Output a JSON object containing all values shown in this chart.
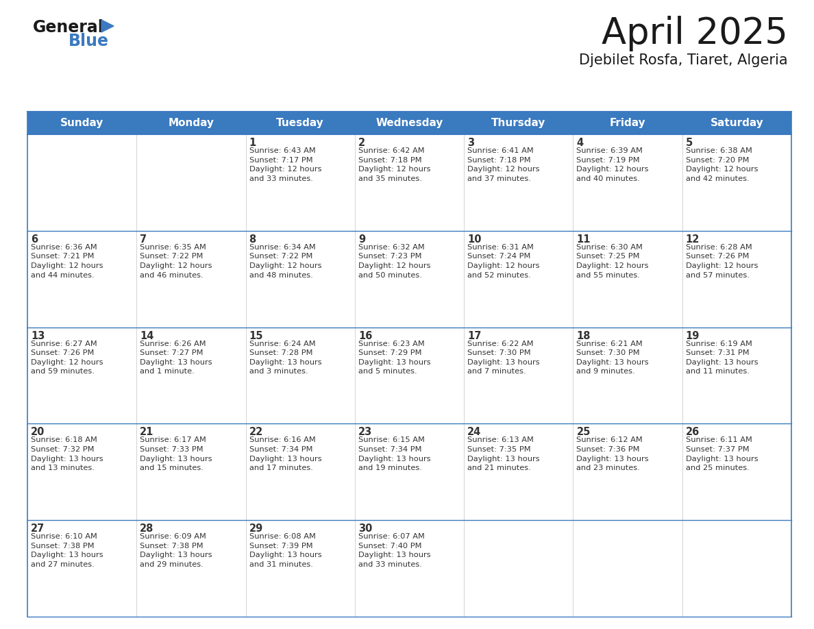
{
  "title": "April 2025",
  "subtitle": "Djebilet Rosfa, Tiaret, Algeria",
  "header_color": "#3a7abf",
  "header_text_color": "#ffffff",
  "border_color": "#3a7abf",
  "text_color": "#333333",
  "days_of_week": [
    "Sunday",
    "Monday",
    "Tuesday",
    "Wednesday",
    "Thursday",
    "Friday",
    "Saturday"
  ],
  "logo_general_color": "#1a1a1a",
  "logo_blue_color": "#3a7abf",
  "logo_triangle_color": "#3a7abf",
  "weeks": [
    [
      {
        "day": "",
        "info": ""
      },
      {
        "day": "",
        "info": ""
      },
      {
        "day": "1",
        "info": "Sunrise: 6:43 AM\nSunset: 7:17 PM\nDaylight: 12 hours\nand 33 minutes."
      },
      {
        "day": "2",
        "info": "Sunrise: 6:42 AM\nSunset: 7:18 PM\nDaylight: 12 hours\nand 35 minutes."
      },
      {
        "day": "3",
        "info": "Sunrise: 6:41 AM\nSunset: 7:18 PM\nDaylight: 12 hours\nand 37 minutes."
      },
      {
        "day": "4",
        "info": "Sunrise: 6:39 AM\nSunset: 7:19 PM\nDaylight: 12 hours\nand 40 minutes."
      },
      {
        "day": "5",
        "info": "Sunrise: 6:38 AM\nSunset: 7:20 PM\nDaylight: 12 hours\nand 42 minutes."
      }
    ],
    [
      {
        "day": "6",
        "info": "Sunrise: 6:36 AM\nSunset: 7:21 PM\nDaylight: 12 hours\nand 44 minutes."
      },
      {
        "day": "7",
        "info": "Sunrise: 6:35 AM\nSunset: 7:22 PM\nDaylight: 12 hours\nand 46 minutes."
      },
      {
        "day": "8",
        "info": "Sunrise: 6:34 AM\nSunset: 7:22 PM\nDaylight: 12 hours\nand 48 minutes."
      },
      {
        "day": "9",
        "info": "Sunrise: 6:32 AM\nSunset: 7:23 PM\nDaylight: 12 hours\nand 50 minutes."
      },
      {
        "day": "10",
        "info": "Sunrise: 6:31 AM\nSunset: 7:24 PM\nDaylight: 12 hours\nand 52 minutes."
      },
      {
        "day": "11",
        "info": "Sunrise: 6:30 AM\nSunset: 7:25 PM\nDaylight: 12 hours\nand 55 minutes."
      },
      {
        "day": "12",
        "info": "Sunrise: 6:28 AM\nSunset: 7:26 PM\nDaylight: 12 hours\nand 57 minutes."
      }
    ],
    [
      {
        "day": "13",
        "info": "Sunrise: 6:27 AM\nSunset: 7:26 PM\nDaylight: 12 hours\nand 59 minutes."
      },
      {
        "day": "14",
        "info": "Sunrise: 6:26 AM\nSunset: 7:27 PM\nDaylight: 13 hours\nand 1 minute."
      },
      {
        "day": "15",
        "info": "Sunrise: 6:24 AM\nSunset: 7:28 PM\nDaylight: 13 hours\nand 3 minutes."
      },
      {
        "day": "16",
        "info": "Sunrise: 6:23 AM\nSunset: 7:29 PM\nDaylight: 13 hours\nand 5 minutes."
      },
      {
        "day": "17",
        "info": "Sunrise: 6:22 AM\nSunset: 7:30 PM\nDaylight: 13 hours\nand 7 minutes."
      },
      {
        "day": "18",
        "info": "Sunrise: 6:21 AM\nSunset: 7:30 PM\nDaylight: 13 hours\nand 9 minutes."
      },
      {
        "day": "19",
        "info": "Sunrise: 6:19 AM\nSunset: 7:31 PM\nDaylight: 13 hours\nand 11 minutes."
      }
    ],
    [
      {
        "day": "20",
        "info": "Sunrise: 6:18 AM\nSunset: 7:32 PM\nDaylight: 13 hours\nand 13 minutes."
      },
      {
        "day": "21",
        "info": "Sunrise: 6:17 AM\nSunset: 7:33 PM\nDaylight: 13 hours\nand 15 minutes."
      },
      {
        "day": "22",
        "info": "Sunrise: 6:16 AM\nSunset: 7:34 PM\nDaylight: 13 hours\nand 17 minutes."
      },
      {
        "day": "23",
        "info": "Sunrise: 6:15 AM\nSunset: 7:34 PM\nDaylight: 13 hours\nand 19 minutes."
      },
      {
        "day": "24",
        "info": "Sunrise: 6:13 AM\nSunset: 7:35 PM\nDaylight: 13 hours\nand 21 minutes."
      },
      {
        "day": "25",
        "info": "Sunrise: 6:12 AM\nSunset: 7:36 PM\nDaylight: 13 hours\nand 23 minutes."
      },
      {
        "day": "26",
        "info": "Sunrise: 6:11 AM\nSunset: 7:37 PM\nDaylight: 13 hours\nand 25 minutes."
      }
    ],
    [
      {
        "day": "27",
        "info": "Sunrise: 6:10 AM\nSunset: 7:38 PM\nDaylight: 13 hours\nand 27 minutes."
      },
      {
        "day": "28",
        "info": "Sunrise: 6:09 AM\nSunset: 7:38 PM\nDaylight: 13 hours\nand 29 minutes."
      },
      {
        "day": "29",
        "info": "Sunrise: 6:08 AM\nSunset: 7:39 PM\nDaylight: 13 hours\nand 31 minutes."
      },
      {
        "day": "30",
        "info": "Sunrise: 6:07 AM\nSunset: 7:40 PM\nDaylight: 13 hours\nand 33 minutes."
      },
      {
        "day": "",
        "info": ""
      },
      {
        "day": "",
        "info": ""
      },
      {
        "day": "",
        "info": ""
      }
    ]
  ]
}
